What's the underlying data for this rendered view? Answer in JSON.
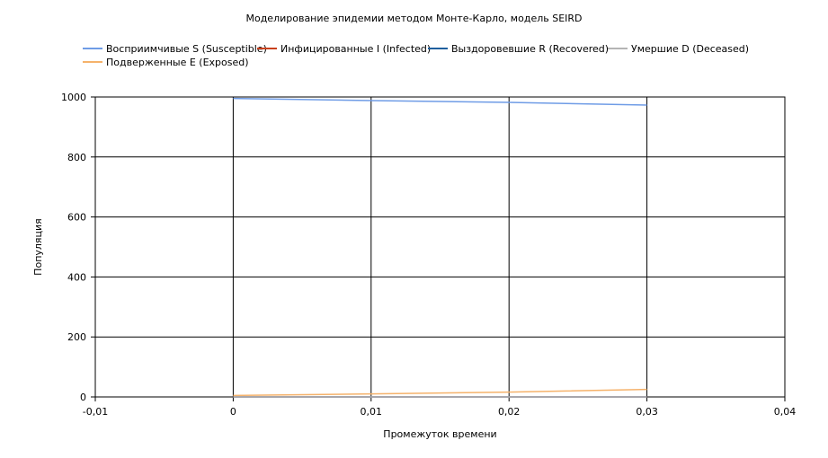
{
  "chart_data": {
    "type": "line",
    "title": "Моделирование эпидемии методом Монте-Карло, модель SEIRD",
    "xlabel": "Промежуток времени",
    "ylabel": "Популяция",
    "xlim": [
      -0.01,
      0.04
    ],
    "ylim": [
      0,
      1000
    ],
    "xticks": [
      "-0,01",
      "0",
      "0,01",
      "0,02",
      "0,03",
      "0,04"
    ],
    "yticks": [
      "0",
      "200",
      "400",
      "600",
      "800",
      "1000"
    ],
    "grid": true,
    "legend_position": "top",
    "x": [
      0,
      0.01,
      0.02,
      0.03
    ],
    "series": [
      {
        "name": "Восприимчивые S (Susceptible)",
        "color": "#6f9ce6",
        "values": [
          995,
          988,
          982,
          973
        ]
      },
      {
        "name": "Инфицированные I (Infected)",
        "color": "#c9401c",
        "values": [
          0,
          0,
          0,
          0
        ]
      },
      {
        "name": "Выздоровевшие R (Recovered)",
        "color": "#1f5f9e",
        "values": [
          0,
          0,
          0,
          0
        ]
      },
      {
        "name": "Умершие D (Deceased)",
        "color": "#b4b4b4",
        "values": [
          0,
          0,
          0,
          0
        ]
      },
      {
        "name": "Подверженные E (Exposed)",
        "color": "#f5b26b",
        "values": [
          5,
          10,
          16,
          25
        ]
      }
    ]
  }
}
